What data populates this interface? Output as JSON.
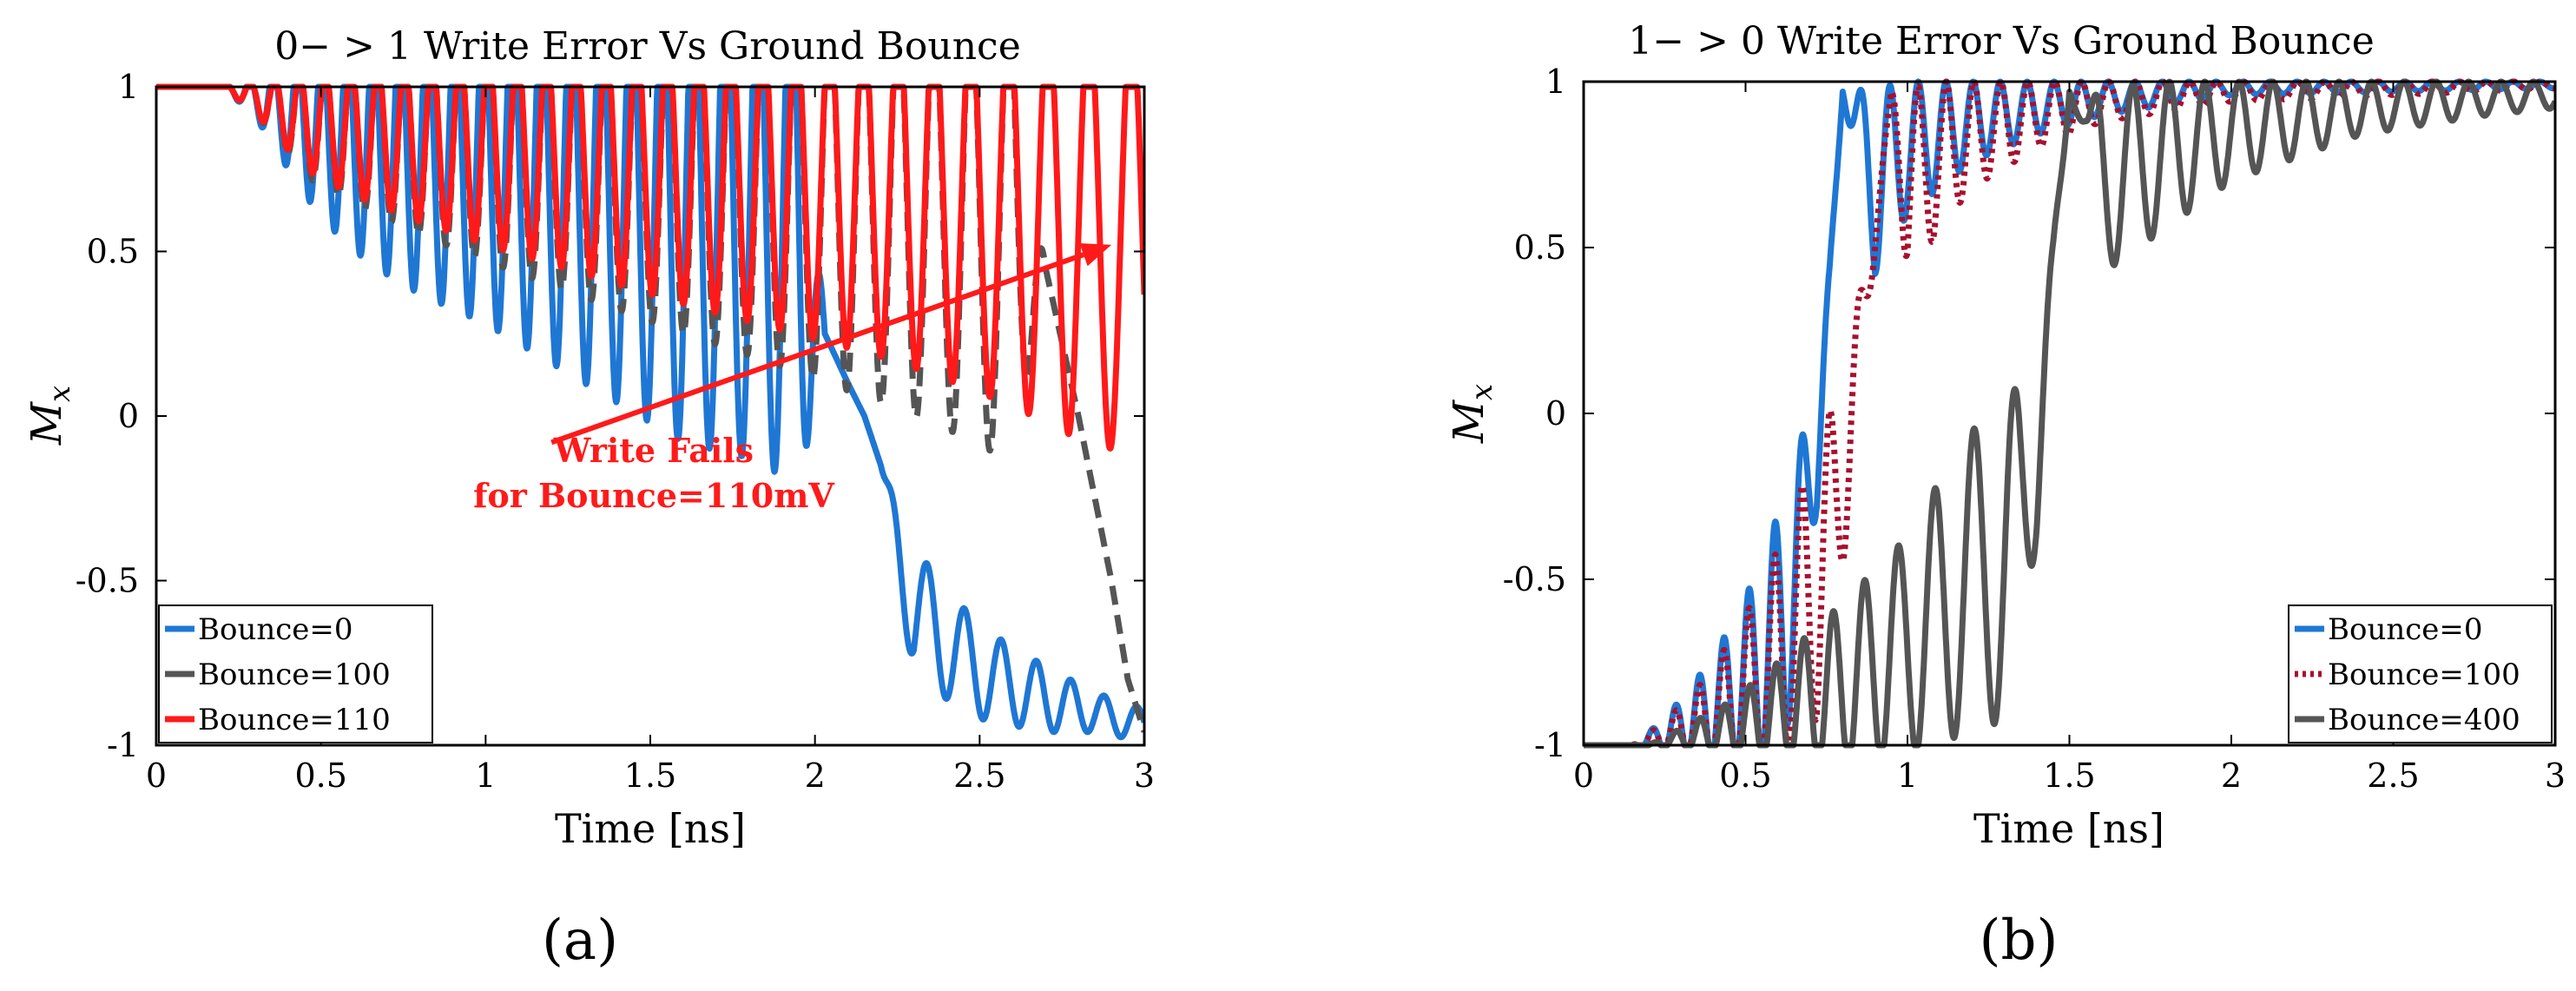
{
  "colors": {
    "blue": "#1f77d4",
    "gray": "#555555",
    "red": "#ff1a1a",
    "darkred": "#a8102e"
  },
  "chart_data": [
    {
      "type": "line",
      "title": "0− > 1 Write Error Vs Ground Bounce",
      "xlabel": "Time [ns]",
      "ylabel": "M",
      "ylabel_sub": "x",
      "xlim": [
        0,
        3
      ],
      "ylim": [
        -1,
        1
      ],
      "xticks": [
        0,
        0.5,
        1,
        1.5,
        2,
        2.5,
        3
      ],
      "xtick_labels": [
        "0",
        "0.5",
        "1",
        "1.5",
        "2",
        "2.5",
        "3"
      ],
      "yticks": [
        -1,
        -0.5,
        0,
        0.5,
        1
      ],
      "ytick_labels": [
        "-1",
        "-0.5",
        "0",
        "0.5",
        "1"
      ],
      "panel_label": "(a)",
      "legend": [
        "Bounce=0",
        "Bounce=100",
        "Bounce=110"
      ],
      "legend_position": "bottom-left",
      "annotation": {
        "line1": "Write Fails",
        "line2": "for Bounce=110mV",
        "arrow_from": [
          1.2,
          -0.08
        ],
        "arrow_to": [
          2.9,
          0.52
        ]
      },
      "series": [
        {
          "name": "Bounce=0",
          "color": "#1f77d4",
          "style": "solid",
          "x": [
            0,
            0.2,
            0.3,
            0.45,
            0.55,
            0.65,
            0.8,
            1.0,
            1.3,
            1.6,
            1.85,
            1.95,
            2.03,
            2.1,
            2.15,
            2.2,
            2.3,
            2.5,
            2.7,
            2.85,
            3.0
          ],
          "env": [
            0.0,
            0.0,
            0.06,
            0.22,
            0.3,
            0.36,
            0.42,
            0.48,
            0.6,
            0.72,
            0.76,
            0.82,
            0.0,
            0.0,
            0.0,
            0.0,
            0.0,
            0.0,
            0.0,
            0.0,
            0.0
          ],
          "mean": [
            1.0,
            1.0,
            0.97,
            0.89,
            0.85,
            0.82,
            0.79,
            0.76,
            0.7,
            0.64,
            0.62,
            0.57,
            0.25,
            0.1,
            0.0,
            -0.15,
            -0.6,
            -0.78,
            -0.86,
            -0.9,
            -0.94
          ],
          "env2": [
            0.0,
            0.0,
            0.0,
            0.0,
            0.0,
            0.0,
            0.0,
            0.0,
            0.0,
            0.0,
            0.0,
            0.0,
            0.0,
            0.0,
            0.0,
            0.0,
            0.2,
            0.14,
            0.1,
            0.06,
            0.05
          ],
          "freq": [
            14,
            14,
            14,
            13.5,
            13,
            12.5,
            12,
            11.5,
            11,
            10.5,
            10,
            10,
            10,
            10,
            10,
            10,
            8.5,
            9,
            9.5,
            10,
            10
          ]
        },
        {
          "name": "Bounce=100",
          "color": "#555555",
          "style": "dashed",
          "x": [
            0,
            0.2,
            0.3,
            0.45,
            0.6,
            0.8,
            1.0,
            1.3,
            1.6,
            1.9,
            2.2,
            2.4,
            2.6,
            2.7,
            2.8,
            2.9,
            2.95,
            3.0
          ],
          "env": [
            0.0,
            0.0,
            0.05,
            0.16,
            0.22,
            0.28,
            0.33,
            0.4,
            0.47,
            0.54,
            0.6,
            0.64,
            0.7,
            0.0,
            0.0,
            0.0,
            0.0,
            0.0
          ],
          "mean": [
            1.0,
            1.0,
            0.97,
            0.89,
            0.86,
            0.83,
            0.8,
            0.76,
            0.72,
            0.69,
            0.64,
            0.6,
            0.56,
            0.45,
            0.0,
            -0.5,
            -0.8,
            -0.96
          ],
          "env2": [
            0,
            0,
            0,
            0,
            0,
            0,
            0,
            0,
            0,
            0,
            0,
            0,
            0,
            0,
            0,
            0,
            0,
            0
          ],
          "freq": [
            14,
            14,
            13.5,
            13,
            12.5,
            12,
            11.5,
            11,
            10.5,
            10,
            9.5,
            9,
            8.5,
            8.5,
            8.5,
            8.5,
            8.5,
            8.5
          ]
        },
        {
          "name": "Bounce=110",
          "color": "#ff1a1a",
          "style": "solid",
          "x": [
            0,
            0.2,
            0.3,
            0.45,
            0.6,
            0.8,
            1.0,
            1.3,
            1.6,
            1.9,
            2.2,
            2.4,
            2.6,
            2.8,
            3.0
          ],
          "env": [
            0.0,
            0.0,
            0.05,
            0.15,
            0.2,
            0.25,
            0.3,
            0.36,
            0.42,
            0.47,
            0.52,
            0.56,
            0.6,
            0.65,
            0.68
          ],
          "mean": [
            1.0,
            1.0,
            0.97,
            0.9,
            0.87,
            0.84,
            0.82,
            0.79,
            0.76,
            0.73,
            0.7,
            0.67,
            0.63,
            0.58,
            0.55
          ],
          "env2": [
            0,
            0,
            0,
            0,
            0,
            0,
            0,
            0,
            0,
            0,
            0,
            0,
            0,
            0,
            0
          ],
          "freq": [
            14,
            14,
            13.5,
            13,
            12.5,
            12,
            11.5,
            11,
            10.5,
            10,
            9.5,
            9,
            8.5,
            8,
            7.5
          ]
        }
      ]
    },
    {
      "type": "line",
      "title": "1− > 0 Write Error Vs Ground Bounce",
      "xlabel": "Time [ns]",
      "ylabel": "M",
      "ylabel_sub": "x",
      "xlim": [
        0,
        3
      ],
      "ylim": [
        -1,
        1
      ],
      "xticks": [
        0,
        0.5,
        1,
        1.5,
        2,
        2.5,
        3
      ],
      "xtick_labels": [
        "0",
        "0.5",
        "1",
        "1.5",
        "2",
        "2.5",
        "3"
      ],
      "yticks": [
        -1,
        -0.5,
        0,
        0.5,
        1
      ],
      "ytick_labels": [
        "-1",
        "-0.5",
        "0",
        "0.5",
        "1"
      ],
      "panel_label": "(b)",
      "legend": [
        "Bounce=0",
        "Bounce=100",
        "Bounce=400"
      ],
      "legend_position": "bottom-right",
      "series": [
        {
          "name": "Bounce=0",
          "color": "#1f77d4",
          "style": "solid",
          "x": [
            0,
            0.15,
            0.25,
            0.35,
            0.45,
            0.55,
            0.62,
            0.68,
            0.72,
            0.76,
            0.8,
            0.9,
            1.0,
            1.2,
            1.4,
            1.6,
            2.0,
            3.0
          ],
          "env": [
            0.0,
            0.0,
            0.05,
            0.12,
            0.2,
            0.3,
            0.38,
            0.3,
            0.18,
            0.05,
            0.0,
            0.28,
            0.2,
            0.12,
            0.08,
            0.05,
            0.02,
            0.01
          ],
          "mean": [
            -1.0,
            -1.0,
            -0.97,
            -0.92,
            -0.85,
            -0.75,
            -0.62,
            -0.35,
            -0.1,
            0.4,
            0.97,
            0.7,
            0.8,
            0.88,
            0.92,
            0.95,
            0.98,
            0.99
          ],
          "env2": [
            0,
            0,
            0,
            0,
            0,
            0,
            0,
            0,
            0,
            0,
            0,
            0,
            0,
            0,
            0,
            0,
            0,
            0
          ],
          "freq": [
            14,
            14,
            14,
            13.5,
            13,
            12.5,
            12,
            11.5,
            11,
            11,
            11,
            11,
            11.5,
            12,
            12,
            12,
            12,
            12
          ]
        },
        {
          "name": "Bounce=100",
          "color": "#a8102e",
          "style": "dotted",
          "x": [
            0,
            0.15,
            0.25,
            0.35,
            0.45,
            0.55,
            0.65,
            0.72,
            0.78,
            0.84,
            0.9,
            0.95,
            1.0,
            1.1,
            1.2,
            1.4,
            1.6,
            2.0,
            3.0
          ],
          "env": [
            0.0,
            0.0,
            0.04,
            0.1,
            0.18,
            0.26,
            0.36,
            0.42,
            0.35,
            0.2,
            0.05,
            0.0,
            0.3,
            0.22,
            0.16,
            0.1,
            0.06,
            0.03,
            0.01
          ],
          "mean": [
            -1.0,
            -1.0,
            -0.97,
            -0.93,
            -0.87,
            -0.78,
            -0.65,
            -0.5,
            -0.3,
            0.1,
            0.55,
            0.97,
            0.68,
            0.78,
            0.84,
            0.9,
            0.94,
            0.97,
            0.99
          ],
          "env2": [
            0,
            0,
            0,
            0,
            0,
            0,
            0,
            0,
            0,
            0,
            0,
            0,
            0,
            0,
            0,
            0,
            0,
            0,
            0
          ],
          "freq": [
            14,
            14,
            14,
            13.5,
            13,
            12.5,
            12,
            11.5,
            11,
            11,
            11,
            11,
            11,
            11.5,
            12,
            12,
            12,
            12,
            12
          ]
        },
        {
          "name": "Bounce=400",
          "color": "#555555",
          "style": "solid",
          "x": [
            0,
            0.2,
            0.3,
            0.45,
            0.6,
            0.8,
            1.0,
            1.1,
            1.2,
            1.3,
            1.35,
            1.4,
            1.45,
            1.5,
            1.55,
            1.6,
            1.8,
            2.0,
            2.4,
            2.8,
            3.0
          ],
          "env": [
            0.0,
            0.0,
            0.03,
            0.08,
            0.15,
            0.25,
            0.33,
            0.4,
            0.45,
            0.48,
            0.45,
            0.3,
            0.12,
            0.0,
            0.05,
            0.28,
            0.22,
            0.15,
            0.08,
            0.05,
            0.04
          ],
          "mean": [
            -1.0,
            -1.0,
            -0.98,
            -0.95,
            -0.9,
            -0.82,
            -0.7,
            -0.6,
            -0.5,
            -0.45,
            -0.35,
            -0.05,
            0.4,
            0.97,
            0.88,
            0.7,
            0.78,
            0.85,
            0.92,
            0.95,
            0.96
          ],
          "env2": [
            0,
            0,
            0,
            0,
            0,
            0,
            0,
            0,
            0,
            0,
            0,
            0,
            0,
            0,
            0,
            0,
            0,
            0,
            0,
            0,
            0
          ],
          "freq": [
            14,
            14,
            13.5,
            13,
            12,
            10.5,
            9,
            8.5,
            8,
            8,
            8,
            8,
            8,
            8,
            8,
            8.5,
            9,
            9.5,
            10,
            10,
            10
          ]
        }
      ]
    }
  ]
}
